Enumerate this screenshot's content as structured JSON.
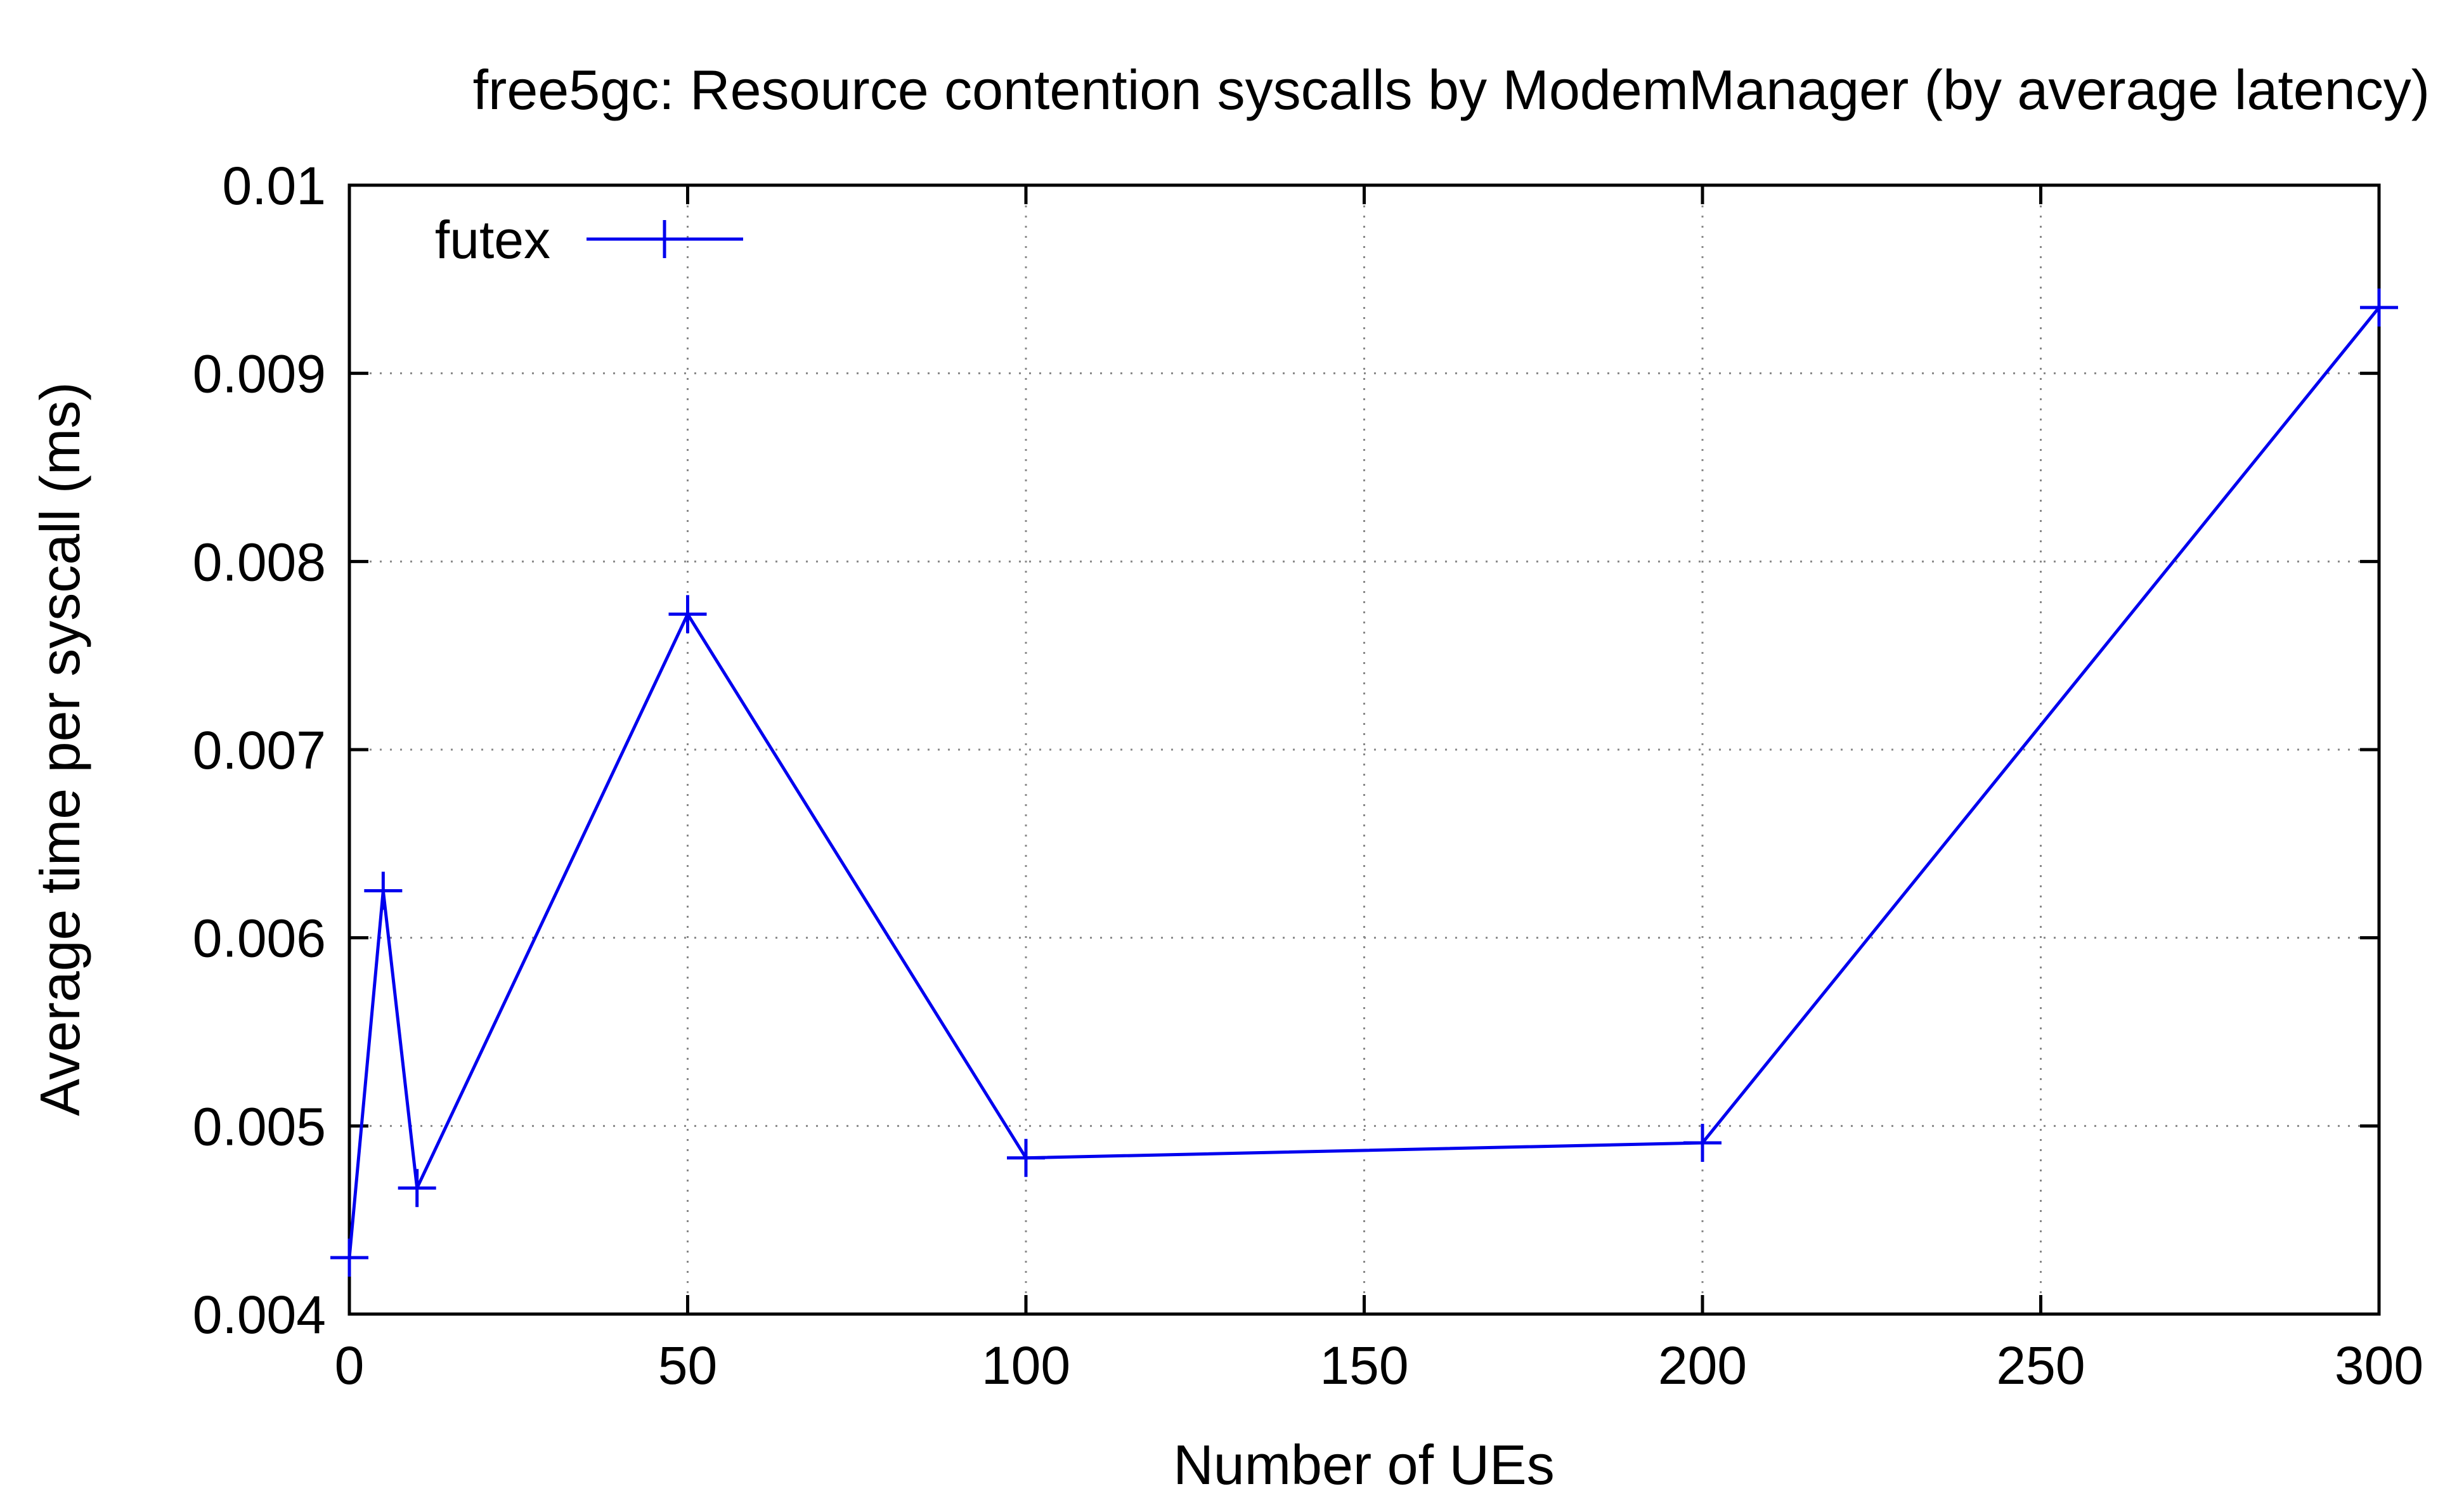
{
  "chart_data": {
    "type": "line",
    "title": "free5gc: Resource contention syscalls by ModemManager (by average latency)",
    "xlabel": "Number of UEs",
    "ylabel": "Average time per syscall (ms)",
    "xlim": [
      0,
      300
    ],
    "ylim": [
      0.004,
      0.01
    ],
    "xticks": [
      "0",
      "50",
      "100",
      "150",
      "200",
      "250",
      "300"
    ],
    "yticks": [
      "0.004",
      "0.005",
      "0.006",
      "0.007",
      "0.008",
      "0.009",
      "0.01"
    ],
    "grid": true,
    "legend_position": "top-left",
    "series": [
      {
        "name": "futex",
        "color": "#0000ee",
        "marker": "plus",
        "points": [
          {
            "x": 0,
            "y": 0.0043
          },
          {
            "x": 5,
            "y": 0.00625
          },
          {
            "x": 10,
            "y": 0.00467
          },
          {
            "x": 50,
            "y": 0.00772
          },
          {
            "x": 100,
            "y": 0.00483
          },
          {
            "x": 200,
            "y": 0.00491
          },
          {
            "x": 300,
            "y": 0.00935
          }
        ]
      }
    ]
  }
}
